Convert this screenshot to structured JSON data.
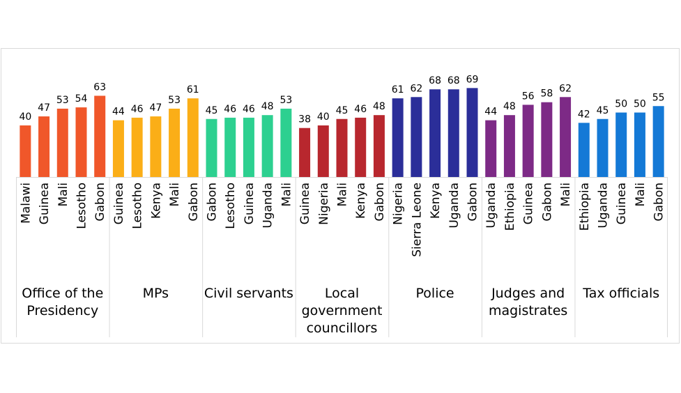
{
  "chart_data": {
    "type": "bar",
    "ylim": [
      0,
      80
    ],
    "grid": false,
    "legend": "none",
    "groups": [
      {
        "name": "Office of the Presidency",
        "name_lines": [
          "Office of the",
          "Presidency"
        ],
        "color": "#F0572A",
        "categories": [
          "Malawi",
          "Guinea",
          "Mali",
          "Lesotho",
          "Gabon"
        ],
        "values": [
          40,
          47,
          53,
          54,
          63
        ]
      },
      {
        "name": "MPs",
        "name_lines": [
          "MPs"
        ],
        "color": "#FBAE17",
        "categories": [
          "Guinea",
          "Lesotho",
          "Kenya",
          "Mali",
          "Gabon"
        ],
        "values": [
          44,
          46,
          47,
          53,
          61
        ]
      },
      {
        "name": "Civil servants",
        "name_lines": [
          "Civil servants"
        ],
        "color": "#2DD090",
        "categories": [
          "Gabon",
          "Lesotho",
          "Guinea",
          "Uganda",
          "Mali"
        ],
        "values": [
          45,
          46,
          46,
          48,
          53
        ]
      },
      {
        "name": "Local government councillors",
        "name_lines": [
          "Local",
          "government",
          "councillors"
        ],
        "color": "#B8272E",
        "categories": [
          "Guinea",
          "Nigeria",
          "Mali",
          "Kenya",
          "Gabon"
        ],
        "values": [
          38,
          40,
          45,
          46,
          48
        ]
      },
      {
        "name": "Police",
        "name_lines": [
          "Police"
        ],
        "color": "#2B2E99",
        "categories": [
          "Nigeria",
          "Sierra Leone",
          "Kenya",
          "Uganda",
          "Gabon"
        ],
        "values": [
          61,
          62,
          68,
          68,
          69
        ]
      },
      {
        "name": "Judges and magistrates",
        "name_lines": [
          "Judges and",
          "magistrates"
        ],
        "color": "#7D2A86",
        "categories": [
          "Uganda",
          "Ethiopia",
          "Guinea",
          "Gabon",
          "Mali"
        ],
        "values": [
          44,
          48,
          56,
          58,
          62
        ]
      },
      {
        "name": "Tax officials",
        "name_lines": [
          "Tax officials"
        ],
        "color": "#1479D6",
        "categories": [
          "Ethiopia",
          "Uganda",
          "Guinea",
          "Mali",
          "Gabon"
        ],
        "values": [
          42,
          45,
          50,
          50,
          55
        ]
      }
    ]
  }
}
